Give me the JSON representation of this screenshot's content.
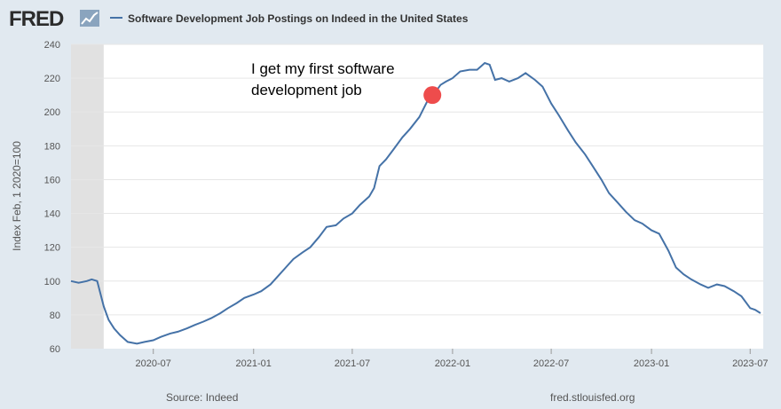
{
  "brand": {
    "logo_text": "FRED"
  },
  "legend": {
    "label": "Software Development Job Postings on Indeed in the United States"
  },
  "annotation": {
    "text_lines": [
      "I get my first software",
      "development job"
    ],
    "marker_date": "2021-11-25",
    "marker_value": 210,
    "marker_color": "#ee4c4c"
  },
  "footer": {
    "source": "Source: Indeed",
    "site": "fred.stlouisfed.org"
  },
  "colors": {
    "line": "#4572a7",
    "recession": "#e1e1e1",
    "grid": "#e6e6e6",
    "background": "#e1e9f0",
    "plot_bg": "#ffffff"
  },
  "chart_data": {
    "type": "line",
    "title": "Software Development Job Postings on Indeed in the United States",
    "xlabel": "",
    "ylabel": "Index Feb, 1 2020=100",
    "ylim": [
      60,
      240
    ],
    "xlim": [
      "2020-02-01",
      "2023-07-25"
    ],
    "yticks": [
      60,
      80,
      100,
      120,
      140,
      160,
      180,
      200,
      220,
      240
    ],
    "xticks": [
      "2020-07",
      "2021-01",
      "2021-07",
      "2022-01",
      "2022-07",
      "2023-01",
      "2023-07"
    ],
    "shaded_period": [
      "2020-02-01",
      "2020-04-01"
    ],
    "grid": true,
    "series": [
      {
        "name": "Software Development Job Postings on Indeed in the United States",
        "x": [
          "2020-02-01",
          "2020-02-15",
          "2020-03-01",
          "2020-03-10",
          "2020-03-20",
          "2020-04-01",
          "2020-04-10",
          "2020-04-20",
          "2020-05-01",
          "2020-05-15",
          "2020-06-01",
          "2020-06-15",
          "2020-07-01",
          "2020-07-15",
          "2020-08-01",
          "2020-08-15",
          "2020-09-01",
          "2020-09-15",
          "2020-10-01",
          "2020-10-15",
          "2020-11-01",
          "2020-11-15",
          "2020-12-01",
          "2020-12-15",
          "2021-01-01",
          "2021-01-15",
          "2021-02-01",
          "2021-02-15",
          "2021-03-01",
          "2021-03-15",
          "2021-04-01",
          "2021-04-15",
          "2021-05-01",
          "2021-05-15",
          "2021-06-01",
          "2021-06-15",
          "2021-07-01",
          "2021-07-15",
          "2021-08-01",
          "2021-08-10",
          "2021-08-20",
          "2021-09-01",
          "2021-09-15",
          "2021-10-01",
          "2021-10-15",
          "2021-11-01",
          "2021-11-15",
          "2021-12-01",
          "2021-12-10",
          "2021-12-20",
          "2022-01-01",
          "2022-01-15",
          "2022-02-01",
          "2022-02-15",
          "2022-03-01",
          "2022-03-10",
          "2022-03-20",
          "2022-04-01",
          "2022-04-15",
          "2022-05-01",
          "2022-05-15",
          "2022-06-01",
          "2022-06-15",
          "2022-07-01",
          "2022-07-15",
          "2022-08-01",
          "2022-08-15",
          "2022-09-01",
          "2022-09-15",
          "2022-10-01",
          "2022-10-15",
          "2022-11-01",
          "2022-11-15",
          "2022-12-01",
          "2022-12-15",
          "2023-01-01",
          "2023-01-15",
          "2023-02-01",
          "2023-02-15",
          "2023-03-01",
          "2023-03-15",
          "2023-04-01",
          "2023-04-15",
          "2023-05-01",
          "2023-05-15",
          "2023-06-01",
          "2023-06-15",
          "2023-07-01",
          "2023-07-10",
          "2023-07-20"
        ],
        "values": [
          100,
          99,
          100,
          101,
          100,
          85,
          77,
          72,
          68,
          64,
          63,
          64,
          65,
          67,
          69,
          70,
          72,
          74,
          76,
          78,
          81,
          84,
          87,
          90,
          92,
          94,
          98,
          103,
          108,
          113,
          117,
          120,
          126,
          132,
          133,
          137,
          140,
          145,
          150,
          155,
          168,
          172,
          178,
          185,
          190,
          197,
          206,
          212,
          216,
          218,
          220,
          224,
          225,
          225,
          229,
          228,
          219,
          220,
          218,
          220,
          223,
          219,
          215,
          205,
          198,
          189,
          182,
          175,
          168,
          160,
          152,
          146,
          141,
          136,
          134,
          130,
          128,
          118,
          108,
          104,
          101,
          98,
          96,
          98,
          97,
          94,
          91,
          84,
          83,
          81
        ]
      }
    ]
  }
}
